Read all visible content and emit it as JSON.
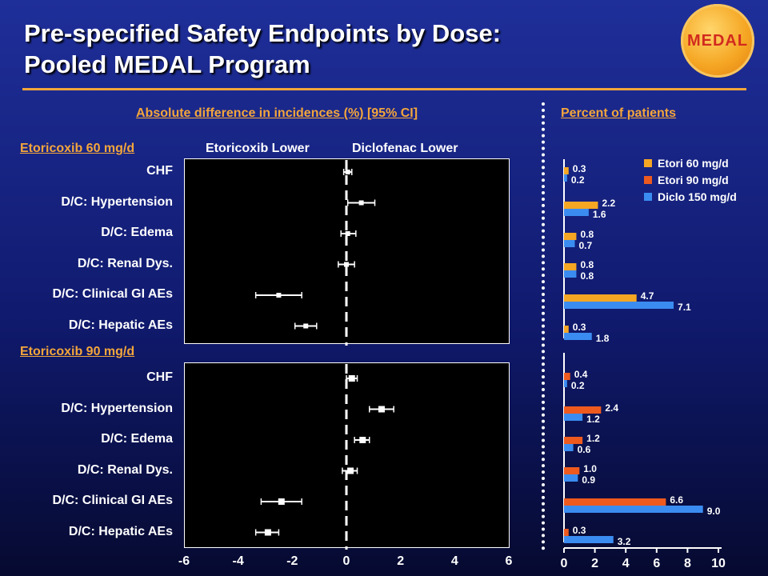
{
  "slide": {
    "title_line1": "Pre-specified Safety Endpoints by Dose:",
    "title_line2": "Pooled MEDAL Program",
    "logo_text": "MEDAL",
    "left_header": "Absolute difference in incidences (%) [95% CI]",
    "right_header": "Percent of patients",
    "col_left": "Etoricoxib Lower",
    "col_right": "Diclofenac Lower",
    "accent_color": "#f4a63b"
  },
  "chart_data": [
    {
      "type": "forest",
      "xlim": [
        -6,
        6
      ],
      "x_ticks": [
        "-6",
        "-4",
        "-2",
        "0",
        "2",
        "4",
        "6"
      ],
      "reference_line": 0,
      "groups": [
        {
          "name": "Etoricoxib 60 mg/d",
          "rows": [
            {
              "label": "CHF",
              "estimate": 0.05,
              "ci": [
                -0.1,
                0.2
              ]
            },
            {
              "label": "D/C: Hypertension",
              "estimate": 0.55,
              "ci": [
                0.05,
                1.05
              ]
            },
            {
              "label": "D/C: Edema",
              "estimate": 0.05,
              "ci": [
                -0.2,
                0.35
              ]
            },
            {
              "label": "D/C: Renal Dys.",
              "estimate": 0.0,
              "ci": [
                -0.3,
                0.3
              ]
            },
            {
              "label": "D/C: Clinical GI AEs",
              "estimate": -2.5,
              "ci": [
                -3.35,
                -1.65
              ]
            },
            {
              "label": "D/C: Hepatic AEs",
              "estimate": -1.5,
              "ci": [
                -1.9,
                -1.1
              ]
            }
          ]
        },
        {
          "name": "Etoricoxib 90 mg/d",
          "rows": [
            {
              "label": "CHF",
              "estimate": 0.2,
              "ci": [
                0.0,
                0.4
              ]
            },
            {
              "label": "D/C: Hypertension",
              "estimate": 1.3,
              "ci": [
                0.85,
                1.75
              ]
            },
            {
              "label": "D/C: Edema",
              "estimate": 0.6,
              "ci": [
                0.3,
                0.85
              ]
            },
            {
              "label": "D/C: Renal Dys.",
              "estimate": 0.15,
              "ci": [
                -0.15,
                0.4
              ]
            },
            {
              "label": "D/C: Clinical GI AEs",
              "estimate": -2.4,
              "ci": [
                -3.15,
                -1.65
              ]
            },
            {
              "label": "D/C: Hepatic AEs",
              "estimate": -2.9,
              "ci": [
                -3.35,
                -2.5
              ]
            }
          ]
        }
      ]
    },
    {
      "type": "bar",
      "orientation": "horizontal",
      "xlim": [
        0,
        10
      ],
      "x_ticks": [
        "0",
        "2",
        "4",
        "6",
        "8",
        "10"
      ],
      "legend_position": "top-right",
      "series_colors": {
        "Etori 60 mg/d": "#f5a623",
        "Etori 90 mg/d": "#ee5a1e",
        "Diclo 150 mg/d": "#3b8cf0"
      },
      "legend": [
        "Etori 60 mg/d",
        "Etori 90 mg/d",
        "Diclo 150 mg/d"
      ],
      "panels": [
        {
          "series": [
            {
              "name": "Etori 60 mg/d",
              "values": [
                0.3,
                2.2,
                0.8,
                0.8,
                4.7,
                0.3
              ]
            },
            {
              "name": "Diclo 150 mg/d",
              "values": [
                0.2,
                1.6,
                0.7,
                0.8,
                7.1,
                1.8
              ]
            }
          ]
        },
        {
          "series": [
            {
              "name": "Etori 90 mg/d",
              "values": [
                0.4,
                2.4,
                1.2,
                1.0,
                6.6,
                0.3
              ]
            },
            {
              "name": "Diclo 150 mg/d",
              "values": [
                0.2,
                1.2,
                0.6,
                0.9,
                9.0,
                3.2
              ]
            }
          ]
        }
      ]
    }
  ]
}
